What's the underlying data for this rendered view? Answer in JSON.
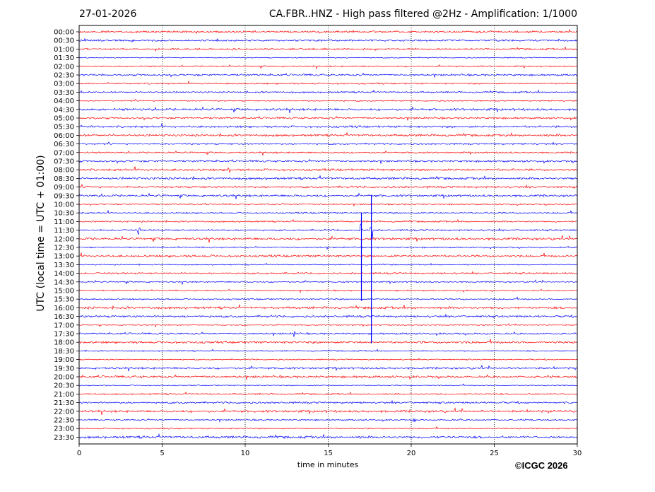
{
  "header": {
    "date": "27-01-2026",
    "title": "CA.FBR..HNZ - High pass filtered @2Hz - Amplification: 1/1000"
  },
  "footer": {
    "copyright": "©ICGC 2026"
  },
  "colors": {
    "trace_a": "#ff0000",
    "trace_b": "#0000ff",
    "grid": "#000000"
  },
  "chart_data": {
    "type": "line",
    "title": "CA.FBR..HNZ - High pass filtered @2Hz - Amplification: 1/1000",
    "xlabel": "time in minutes",
    "ylabel": "UTC (local time = UTC + 01:00)",
    "xlim": [
      0,
      30
    ],
    "x_ticks": [
      0,
      5,
      10,
      15,
      20,
      25,
      30
    ],
    "grid": "vertical dotted",
    "rows": [
      "00:00",
      "00:30",
      "01:00",
      "01:30",
      "02:00",
      "02:30",
      "03:00",
      "03:30",
      "04:00",
      "04:30",
      "05:00",
      "05:30",
      "06:00",
      "06:30",
      "07:00",
      "07:30",
      "08:00",
      "08:30",
      "09:00",
      "09:30",
      "10:00",
      "10:30",
      "11:00",
      "11:30",
      "12:00",
      "12:30",
      "13:00",
      "13:30",
      "14:00",
      "14:30",
      "15:00",
      "15:30",
      "16:00",
      "16:30",
      "17:00",
      "17:30",
      "18:00",
      "18:30",
      "19:00",
      "19:30",
      "20:00",
      "20:30",
      "21:00",
      "21:30",
      "22:00",
      "22:30",
      "23:00",
      "23:30"
    ],
    "trace_colors_alternate": [
      "red",
      "blue"
    ],
    "events": [
      {
        "row": "08:00",
        "minute": 9.0,
        "amplitude": "small"
      },
      {
        "row": "11:30",
        "minute": 3.6,
        "amplitude": "small"
      },
      {
        "row": "11:30",
        "minute": 17.0,
        "amplitude": "large"
      },
      {
        "row": "11:30",
        "minute": 17.6,
        "amplitude": "large"
      },
      {
        "row": "17:30",
        "minute": 13.0,
        "amplitude": "small"
      },
      {
        "row": "22:30",
        "minute": 20.2,
        "amplitude": "small"
      }
    ]
  }
}
